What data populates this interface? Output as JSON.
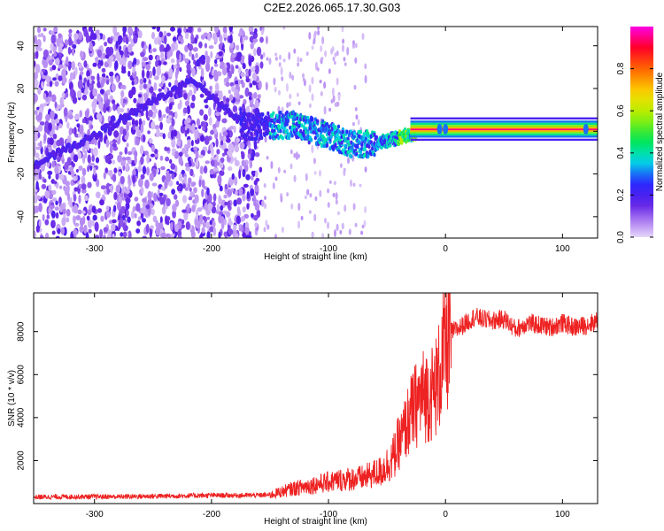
{
  "title": "C2E2.2026.065.17.30.G03",
  "chart_data": [
    {
      "type": "heatmap",
      "xlabel": "Height of straight line (km)",
      "ylabel": "Frequency (Hz)",
      "xlim": [
        -352,
        130
      ],
      "ylim": [
        -50,
        49
      ],
      "xticks": [
        "-300",
        "-200",
        "-100",
        "0",
        "100"
      ],
      "yticks": [
        "-40",
        "-20",
        "0",
        "20",
        "40"
      ],
      "colorbar": {
        "label": "Normalized spectral amplitude",
        "range": [
          0,
          1
        ],
        "ticks": [
          "0.0",
          "0.2",
          "0.4",
          "0.6",
          "0.8"
        ],
        "colormap": "rainbow"
      },
      "main_trace": {
        "description_points": [
          {
            "x": -352,
            "y": -16
          },
          {
            "x": -300,
            "y": -2
          },
          {
            "x": -250,
            "y": 14
          },
          {
            "x": -215,
            "y": 24
          },
          {
            "x": -170,
            "y": 2
          },
          {
            "x": -130,
            "y": 3
          },
          {
            "x": -100,
            "y": -2
          },
          {
            "x": -80,
            "y": -6
          },
          {
            "x": -60,
            "y": -6
          },
          {
            "x": -40,
            "y": -3
          },
          {
            "x": -20,
            "y": 0
          },
          {
            "x": 0,
            "y": 1
          },
          {
            "x": 130,
            "y": 0
          }
        ],
        "peak_amplitude": 1.0
      },
      "grid": false
    },
    {
      "type": "line",
      "xlabel": "Height of straight line (km)",
      "ylabel": "SNR (10 * v/v)",
      "xlim": [
        -352,
        130
      ],
      "ylim": [
        0,
        9800
      ],
      "xticks": [
        "-300",
        "-200",
        "-100",
        "0",
        "100"
      ],
      "yticks": [
        "2000",
        "4000",
        "6000",
        "8000"
      ],
      "color": "#ee2222",
      "series": [
        {
          "x": [
            -352,
            -320,
            -280,
            -240,
            -200,
            -170,
            -150,
            -130,
            -110,
            -90,
            -70,
            -55,
            -45,
            -38,
            -30,
            -25,
            -20,
            -15,
            -10,
            -5,
            0,
            5,
            10,
            15,
            20,
            25,
            30,
            40,
            50,
            60,
            70,
            80,
            90,
            100,
            110,
            120,
            130
          ],
          "values": [
            300,
            320,
            320,
            350,
            380,
            380,
            400,
            700,
            900,
            1100,
            1200,
            1500,
            2100,
            3000,
            4100,
            4600,
            5000,
            5100,
            5200,
            6000,
            7400,
            8000,
            8100,
            8300,
            8500,
            8700,
            8600,
            8500,
            8600,
            8100,
            8400,
            8300,
            8200,
            8400,
            8200,
            8300,
            8500
          ]
        }
      ],
      "grid": false
    }
  ]
}
